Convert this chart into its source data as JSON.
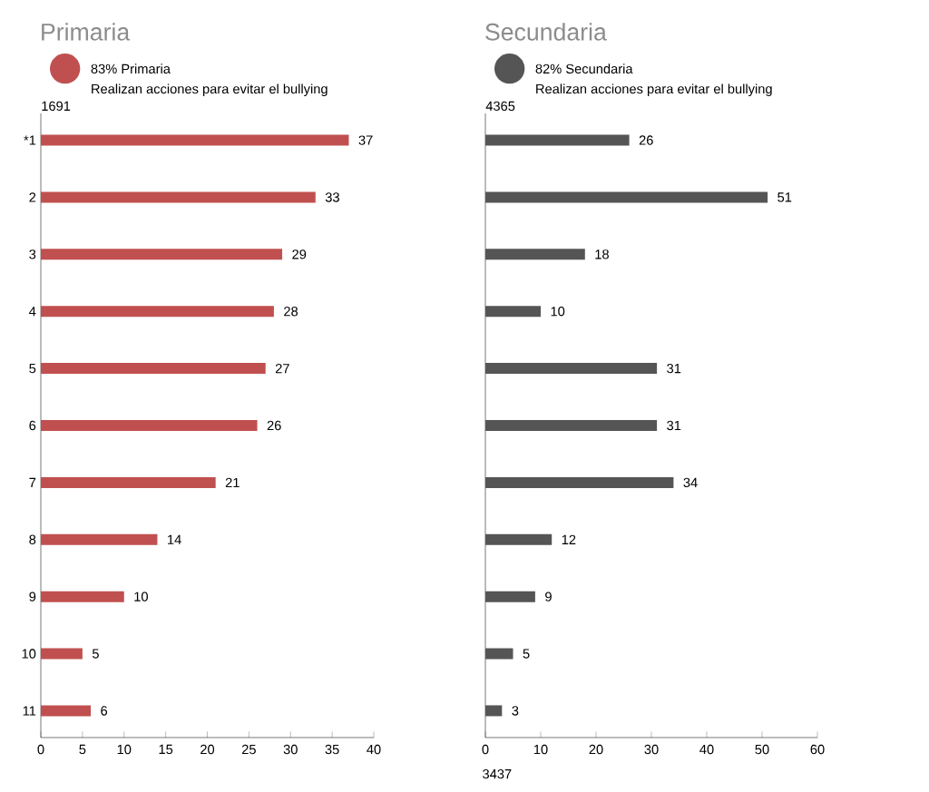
{
  "chart_data": [
    {
      "type": "bar",
      "orientation": "horizontal",
      "title": "Primaria",
      "subtitle": "Realizan acciones para evitar el bullying",
      "categories": [
        "*1",
        "2",
        "3",
        "4",
        "5",
        "6",
        "7",
        "8",
        "9",
        "10",
        "11"
      ],
      "series": [
        {
          "name": "83% Primaria",
          "color": "#c0504f",
          "values": [
            37,
            33,
            29,
            28,
            27,
            26,
            21,
            14,
            10,
            5,
            6
          ]
        }
      ],
      "xlim": [
        0,
        40
      ],
      "xticks": [
        0,
        5,
        10,
        15,
        20,
        25,
        30,
        35,
        40
      ],
      "data_labels": true,
      "legend": "top left",
      "annotations": [
        "1691"
      ]
    },
    {
      "type": "bar",
      "orientation": "horizontal",
      "title": "Secundaria",
      "subtitle": "Realizan acciones para evitar el bullying",
      "categories": [
        null,
        null,
        null,
        null,
        null,
        null,
        null,
        null,
        null,
        null,
        null
      ],
      "series": [
        {
          "name": "82% Secundaria",
          "color": "#555555",
          "values": [
            26,
            51,
            18,
            10,
            31,
            31,
            34,
            12,
            9,
            5,
            3
          ]
        }
      ],
      "xlim": [
        0,
        60
      ],
      "xticks": [
        0,
        10,
        20,
        30,
        40,
        50,
        60
      ],
      "data_labels": true,
      "legend": "top left",
      "annotations": [
        "4365",
        "3437"
      ]
    }
  ]
}
